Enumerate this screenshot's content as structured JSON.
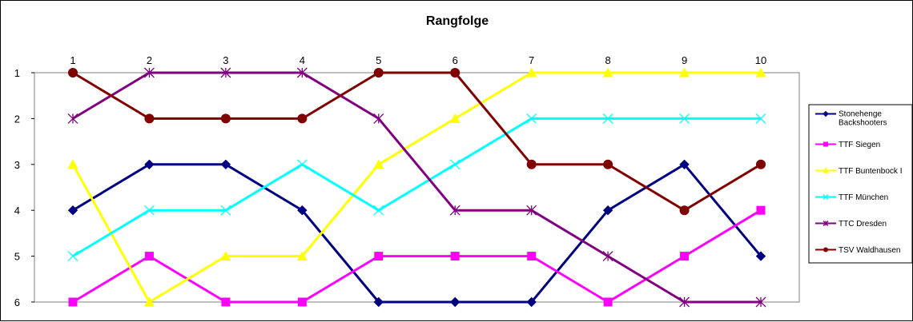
{
  "chart_data": {
    "type": "line",
    "title": "Rangfolge",
    "categories": [
      "1",
      "2",
      "3",
      "4",
      "5",
      "6",
      "7",
      "8",
      "9",
      "10"
    ],
    "ylim": [
      1,
      6
    ],
    "y_reversed": true,
    "y_ticks": [
      "1",
      "2",
      "3",
      "4",
      "5",
      "6"
    ],
    "grid": false,
    "legend_position": "right",
    "series": [
      {
        "name": "Stonehenge Backshooters",
        "legend_lines": [
          "Stonehenge",
          "Backshooters"
        ],
        "color": "#000080",
        "marker": "diamond",
        "values": [
          4,
          3,
          3,
          4,
          6,
          6,
          6,
          4,
          3,
          5
        ]
      },
      {
        "name": "TTF Siegen",
        "legend_lines": [
          "TTF Siegen"
        ],
        "color": "#ff00ff",
        "marker": "square",
        "values": [
          6,
          5,
          6,
          6,
          5,
          5,
          5,
          6,
          5,
          4
        ]
      },
      {
        "name": "TTF Buntenbock I",
        "legend_lines": [
          "TTF Buntenbock I"
        ],
        "color": "#ffff00",
        "marker": "triangle",
        "values": [
          3,
          6,
          5,
          5,
          3,
          2,
          1,
          1,
          1,
          1
        ]
      },
      {
        "name": "TTF München",
        "legend_lines": [
          "TTF München"
        ],
        "color": "#00ffff",
        "marker": "x",
        "values": [
          5,
          4,
          4,
          3,
          4,
          3,
          2,
          2,
          2,
          2
        ]
      },
      {
        "name": "TTC Dresden",
        "legend_lines": [
          "TTC Dresden"
        ],
        "color": "#800080",
        "marker": "star",
        "values": [
          2,
          1,
          1,
          1,
          2,
          4,
          4,
          5,
          6,
          6
        ]
      },
      {
        "name": "TSV Waldhausen",
        "legend_lines": [
          "TSV Waldhausen"
        ],
        "color": "#800000",
        "marker": "circle",
        "values": [
          1,
          2,
          2,
          2,
          1,
          1,
          3,
          3,
          4,
          3
        ]
      }
    ]
  }
}
